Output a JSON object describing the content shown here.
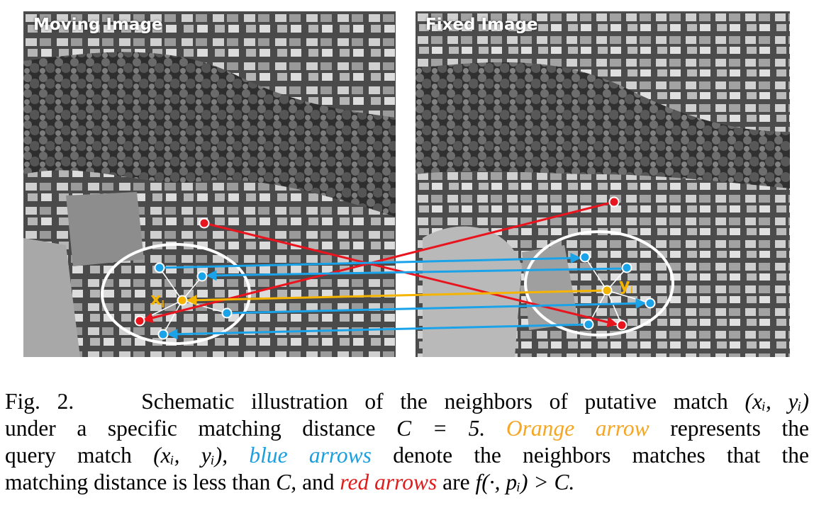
{
  "panels": {
    "moving_title": "Moving Image",
    "fixed_title": "Fixed Image"
  },
  "labels": {
    "query_left": "x",
    "query_left_sub": "i",
    "query_right": "y",
    "query_right_sub": "i"
  },
  "colors": {
    "orange": "#f5b400",
    "blue": "#1aa3e8",
    "red": "#e8141e",
    "ellipse": "#ffffff"
  },
  "caption": {
    "fig": "Fig. 2.",
    "l1_text": "Schematic illustration of the neighbors of putative match",
    "l1_math": "(xᵢ, yᵢ)",
    "l2_a": "under a specific matching distance",
    "l2_math": "C = 5.",
    "l2_orange": "Orange arrow",
    "l2_b": "represents the",
    "l3_a": "query match",
    "l3_math": "(xᵢ, yᵢ),",
    "l3_blue": "blue arrows",
    "l3_b": "denote the neighbors matches that the",
    "l4_a": "matching distance is less than",
    "l4_math1": "C,",
    "l4_b": "and",
    "l4_red": "red arrows",
    "l4_c": "are",
    "l4_math2": "f(·, pᵢ) > C."
  }
}
